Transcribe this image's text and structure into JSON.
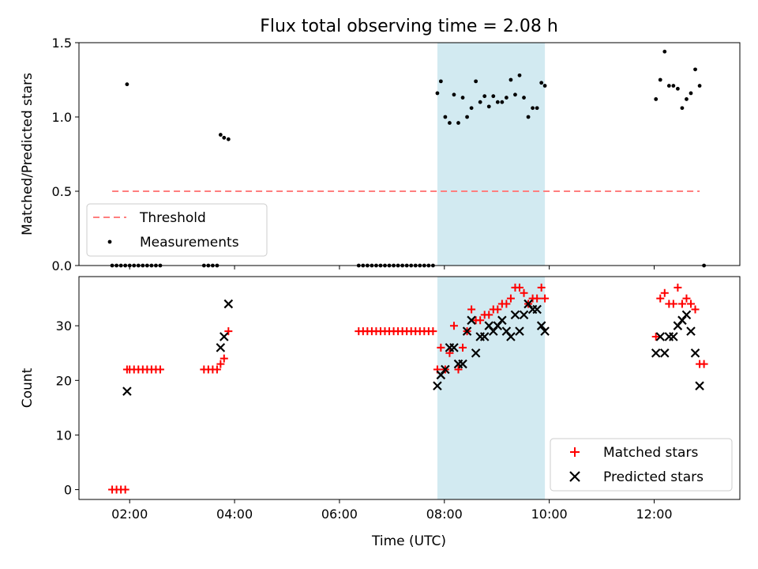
{
  "figure": {
    "title": "Flux total observing time = 2.08 h",
    "xlabel": "Time (UTC)"
  },
  "chart_data": [
    {
      "type": "scatter",
      "title": "Flux total observing time = 2.08 h",
      "ylabel": "Matched/Predicted stars",
      "xlim": [
        "01:02",
        "13:38"
      ],
      "ylim": [
        0,
        1.5
      ],
      "yticks": [
        "0.0",
        "0.5",
        "1.0",
        "1.5"
      ],
      "highlight_span": [
        "07:52",
        "09:55"
      ],
      "highlight_color": "#add8e6",
      "threshold": {
        "name": "Threshold",
        "value": 0.5,
        "x_range": [
          "01:40",
          "12:52"
        ],
        "color": "#ff7f7f",
        "style": "dashed"
      },
      "legend": {
        "position": "lower-left",
        "entries": [
          "Threshold",
          "Measurements"
        ]
      },
      "series": [
        {
          "name": "Measurements",
          "color": "#000000",
          "points": [
            [
              "01:40",
              0
            ],
            [
              "01:45",
              0
            ],
            [
              "01:50",
              0
            ],
            [
              "01:55",
              0.0
            ],
            [
              "01:57",
              1.22
            ],
            [
              "02:00",
              0
            ],
            [
              "02:05",
              0
            ],
            [
              "02:10",
              0
            ],
            [
              "02:15",
              0
            ],
            [
              "02:20",
              0
            ],
            [
              "02:25",
              0
            ],
            [
              "02:30",
              0
            ],
            [
              "02:35",
              0
            ],
            [
              "03:25",
              0
            ],
            [
              "03:30",
              0
            ],
            [
              "03:35",
              0
            ],
            [
              "03:40",
              0
            ],
            [
              "03:44",
              0.88
            ],
            [
              "03:48",
              0.86
            ],
            [
              "03:53",
              0.85
            ],
            [
              "06:22",
              0
            ],
            [
              "06:27",
              0
            ],
            [
              "06:32",
              0
            ],
            [
              "06:37",
              0
            ],
            [
              "06:42",
              0
            ],
            [
              "06:47",
              0
            ],
            [
              "06:52",
              0
            ],
            [
              "06:57",
              0
            ],
            [
              "07:02",
              0
            ],
            [
              "07:07",
              0
            ],
            [
              "07:12",
              0
            ],
            [
              "07:17",
              0
            ],
            [
              "07:22",
              0
            ],
            [
              "07:27",
              0
            ],
            [
              "07:32",
              0
            ],
            [
              "07:37",
              0
            ],
            [
              "07:42",
              0
            ],
            [
              "07:47",
              0
            ],
            [
              "07:52",
              1.16
            ],
            [
              "07:56",
              1.24
            ],
            [
              "08:01",
              1.0
            ],
            [
              "08:06",
              0.96
            ],
            [
              "08:11",
              1.15
            ],
            [
              "08:16",
              0.96
            ],
            [
              "08:21",
              1.13
            ],
            [
              "08:26",
              1.0
            ],
            [
              "08:31",
              1.06
            ],
            [
              "08:36",
              1.24
            ],
            [
              "08:41",
              1.1
            ],
            [
              "08:46",
              1.14
            ],
            [
              "08:51",
              1.07
            ],
            [
              "08:56",
              1.14
            ],
            [
              "09:01",
              1.1
            ],
            [
              "09:06",
              1.1
            ],
            [
              "09:11",
              1.13
            ],
            [
              "09:16",
              1.25
            ],
            [
              "09:21",
              1.15
            ],
            [
              "09:26",
              1.28
            ],
            [
              "09:31",
              1.13
            ],
            [
              "09:36",
              1.0
            ],
            [
              "09:41",
              1.06
            ],
            [
              "09:46",
              1.06
            ],
            [
              "09:51",
              1.23
            ],
            [
              "09:55",
              1.21
            ],
            [
              "12:02",
              1.12
            ],
            [
              "12:07",
              1.25
            ],
            [
              "12:12",
              1.44
            ],
            [
              "12:17",
              1.21
            ],
            [
              "12:22",
              1.21
            ],
            [
              "12:27",
              1.19
            ],
            [
              "12:32",
              1.06
            ],
            [
              "12:37",
              1.12
            ],
            [
              "12:42",
              1.16
            ],
            [
              "12:47",
              1.32
            ],
            [
              "12:52",
              1.21
            ],
            [
              "12:57",
              0
            ]
          ]
        }
      ]
    },
    {
      "type": "scatter",
      "xlabel": "Time (UTC)",
      "ylabel": "Count",
      "xlim": [
        "01:02",
        "13:38"
      ],
      "ylim": [
        -1.8,
        39
      ],
      "xticks": [
        "02:00",
        "04:00",
        "06:00",
        "08:00",
        "10:00",
        "12:00"
      ],
      "yticks": [
        "0",
        "10",
        "20",
        "30"
      ],
      "highlight_span": [
        "07:52",
        "09:55"
      ],
      "legend": {
        "position": "lower-right",
        "entries": [
          "Matched stars",
          "Predicted stars"
        ]
      },
      "series": [
        {
          "name": "Matched stars",
          "marker": "+",
          "color": "#ff0000",
          "points": [
            [
              "01:40",
              0
            ],
            [
              "01:45",
              0
            ],
            [
              "01:50",
              0
            ],
            [
              "01:55",
              0
            ],
            [
              "01:57",
              22
            ],
            [
              "02:00",
              22
            ],
            [
              "02:05",
              22
            ],
            [
              "02:10",
              22
            ],
            [
              "02:15",
              22
            ],
            [
              "02:20",
              22
            ],
            [
              "02:25",
              22
            ],
            [
              "02:30",
              22
            ],
            [
              "02:35",
              22
            ],
            [
              "03:25",
              22
            ],
            [
              "03:30",
              22
            ],
            [
              "03:35",
              22
            ],
            [
              "03:40",
              22
            ],
            [
              "03:44",
              23
            ],
            [
              "03:48",
              24
            ],
            [
              "03:53",
              29
            ],
            [
              "06:22",
              29
            ],
            [
              "06:27",
              29
            ],
            [
              "06:32",
              29
            ],
            [
              "06:37",
              29
            ],
            [
              "06:42",
              29
            ],
            [
              "06:47",
              29
            ],
            [
              "06:52",
              29
            ],
            [
              "06:57",
              29
            ],
            [
              "07:02",
              29
            ],
            [
              "07:07",
              29
            ],
            [
              "07:12",
              29
            ],
            [
              "07:17",
              29
            ],
            [
              "07:22",
              29
            ],
            [
              "07:27",
              29
            ],
            [
              "07:32",
              29
            ],
            [
              "07:37",
              29
            ],
            [
              "07:42",
              29
            ],
            [
              "07:47",
              29
            ],
            [
              "07:52",
              22
            ],
            [
              "07:56",
              26
            ],
            [
              "08:01",
              22
            ],
            [
              "08:06",
              25
            ],
            [
              "08:11",
              30
            ],
            [
              "08:16",
              22
            ],
            [
              "08:21",
              26
            ],
            [
              "08:26",
              29
            ],
            [
              "08:31",
              33
            ],
            [
              "08:36",
              31
            ],
            [
              "08:41",
              31
            ],
            [
              "08:46",
              32
            ],
            [
              "08:51",
              32
            ],
            [
              "08:56",
              33
            ],
            [
              "09:01",
              33
            ],
            [
              "09:06",
              34
            ],
            [
              "09:11",
              34
            ],
            [
              "09:16",
              35
            ],
            [
              "09:21",
              37
            ],
            [
              "09:26",
              37
            ],
            [
              "09:31",
              36
            ],
            [
              "09:36",
              34
            ],
            [
              "09:41",
              35
            ],
            [
              "09:46",
              35
            ],
            [
              "09:51",
              37
            ],
            [
              "09:55",
              35
            ],
            [
              "12:02",
              28
            ],
            [
              "12:07",
              35
            ],
            [
              "12:12",
              36
            ],
            [
              "12:17",
              34
            ],
            [
              "12:22",
              34
            ],
            [
              "12:27",
              37
            ],
            [
              "12:32",
              34
            ],
            [
              "12:37",
              35
            ],
            [
              "12:42",
              34
            ],
            [
              "12:47",
              33
            ],
            [
              "12:52",
              23
            ],
            [
              "12:57",
              23
            ]
          ]
        },
        {
          "name": "Predicted stars",
          "marker": "x",
          "color": "#000000",
          "points": [
            [
              "01:57",
              18
            ],
            [
              "03:44",
              26
            ],
            [
              "03:48",
              28
            ],
            [
              "03:53",
              34
            ],
            [
              "07:52",
              19
            ],
            [
              "07:56",
              21
            ],
            [
              "08:01",
              22
            ],
            [
              "08:06",
              26
            ],
            [
              "08:11",
              26
            ],
            [
              "08:16",
              23
            ],
            [
              "08:21",
              23
            ],
            [
              "08:26",
              29
            ],
            [
              "08:31",
              31
            ],
            [
              "08:36",
              25
            ],
            [
              "08:41",
              28
            ],
            [
              "08:46",
              28
            ],
            [
              "08:51",
              30
            ],
            [
              "08:56",
              29
            ],
            [
              "09:01",
              30
            ],
            [
              "09:06",
              31
            ],
            [
              "09:11",
              29
            ],
            [
              "09:16",
              28
            ],
            [
              "09:21",
              32
            ],
            [
              "09:26",
              29
            ],
            [
              "09:31",
              32
            ],
            [
              "09:36",
              34
            ],
            [
              "09:41",
              33
            ],
            [
              "09:46",
              33
            ],
            [
              "09:51",
              30
            ],
            [
              "09:55",
              29
            ],
            [
              "12:02",
              25
            ],
            [
              "12:07",
              28
            ],
            [
              "12:12",
              25
            ],
            [
              "12:17",
              28
            ],
            [
              "12:22",
              28
            ],
            [
              "12:27",
              30
            ],
            [
              "12:32",
              31
            ],
            [
              "12:37",
              32
            ],
            [
              "12:42",
              29
            ],
            [
              "12:47",
              25
            ],
            [
              "12:52",
              19
            ]
          ]
        }
      ]
    }
  ]
}
